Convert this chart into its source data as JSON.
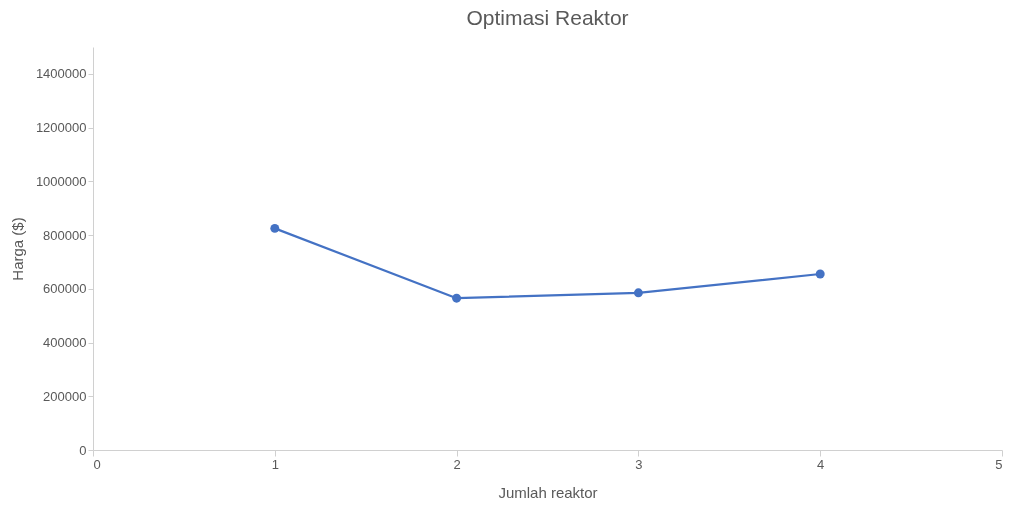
{
  "chart_data": {
    "type": "line",
    "title": "Optimasi Reaktor",
    "xlabel": "Jumlah reaktor",
    "ylabel": "Harga ($)",
    "x": [
      1,
      2,
      3,
      4
    ],
    "series": [
      {
        "color": "#4472c4",
        "values": [
          825000,
          565000,
          585000,
          655000
        ]
      }
    ],
    "xlim": [
      0,
      5
    ],
    "xticks": [
      0,
      1,
      2,
      3,
      4,
      5
    ],
    "ylim": [
      0,
      1500000
    ],
    "yticks": [
      0,
      200000,
      400000,
      600000,
      800000,
      1000000,
      1200000,
      1400000
    ],
    "grid": false,
    "marker": "circle",
    "line_style": "solid"
  }
}
